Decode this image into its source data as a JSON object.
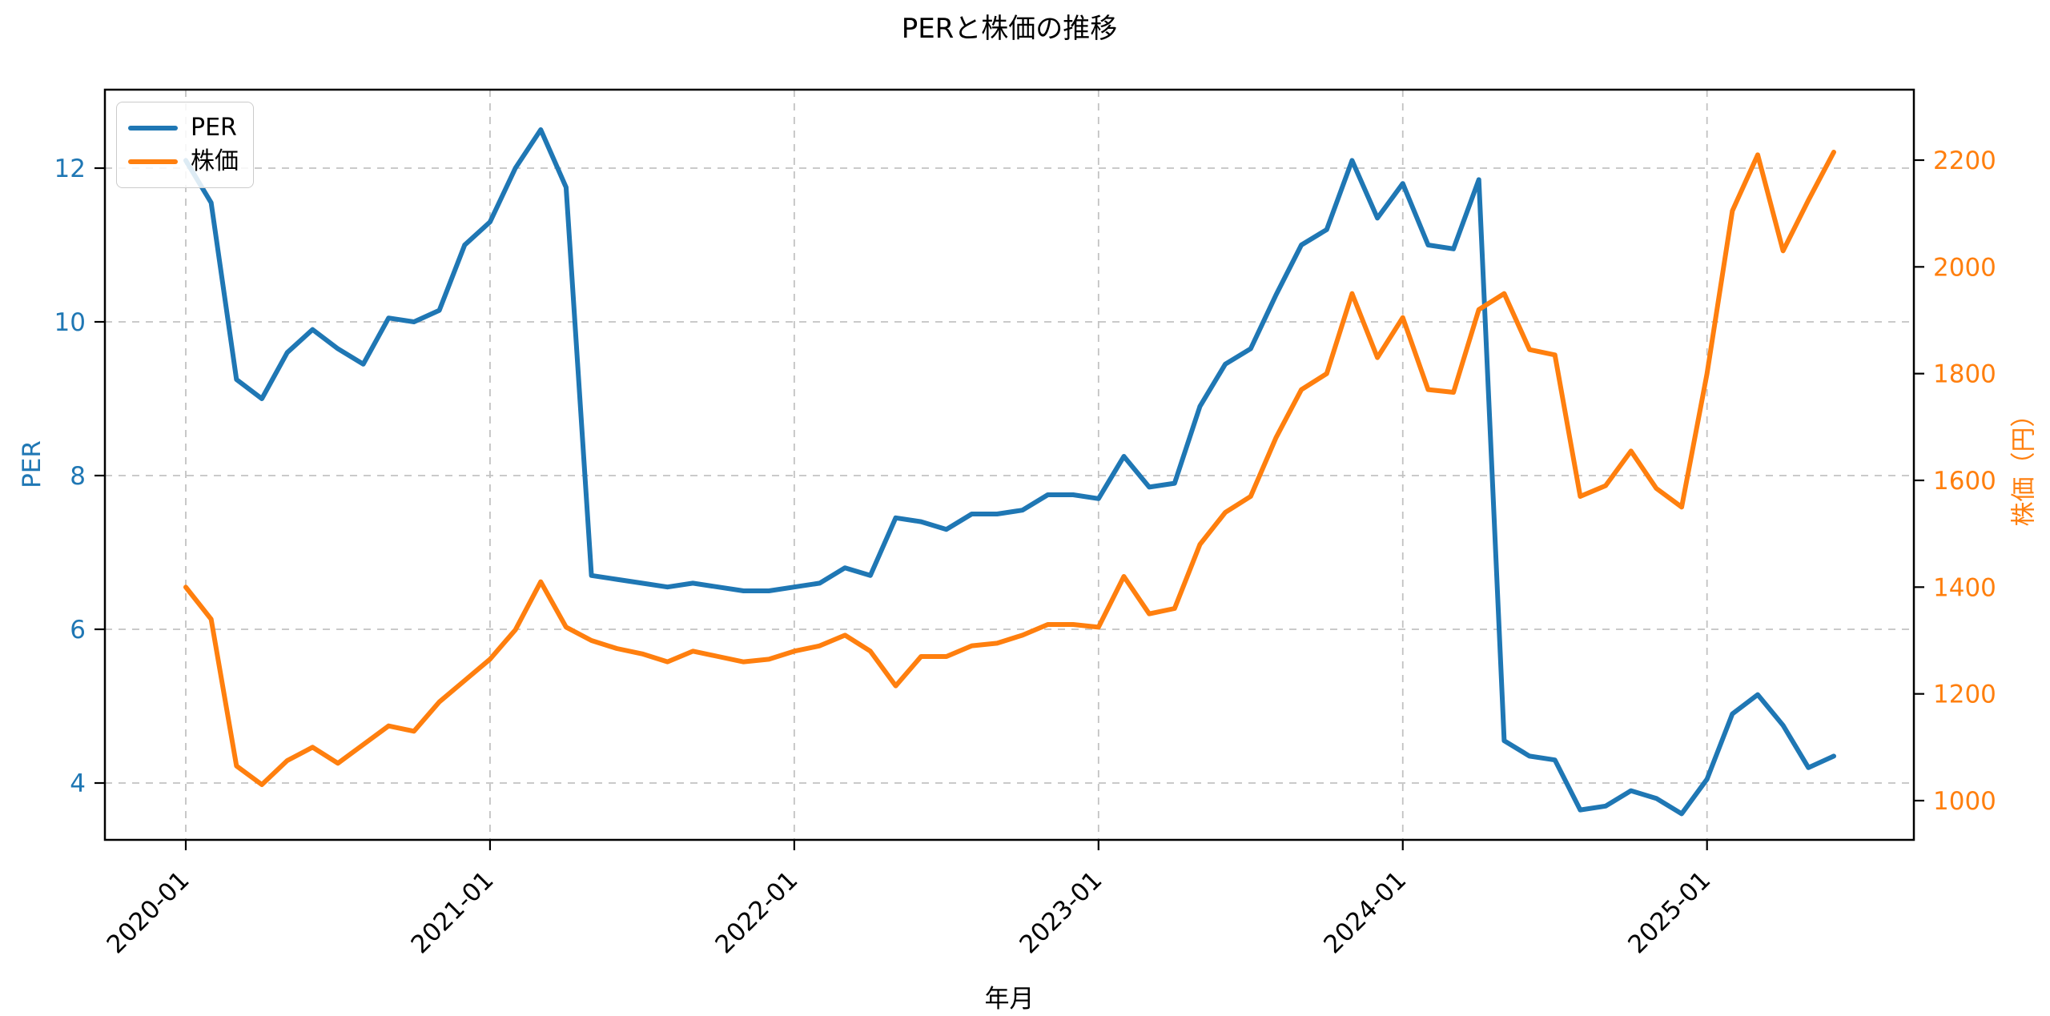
{
  "chart_data": {
    "type": "line",
    "title": "PERと株価の推移",
    "xlabel": "年月",
    "ylabel_left": "PER",
    "ylabel_right": "株価（円）",
    "x_start_month": "2020-01",
    "x_end_month": "2025-06",
    "x_points": 66,
    "x_tick_month_indices": [
      0,
      12,
      24,
      36,
      48,
      60
    ],
    "x_tick_labels": [
      "2020-01",
      "2021-01",
      "2022-01",
      "2023-01",
      "2024-01",
      "2025-01"
    ],
    "y_left_ticks": [
      4,
      6,
      8,
      10,
      12
    ],
    "y_right_ticks": [
      1000,
      1200,
      1400,
      1600,
      1800,
      2000,
      2200
    ],
    "ylim_left": [
      3.27,
      13.02
    ],
    "ylim_right": [
      927,
      2332
    ],
    "grid": "dashed, at left-axis ticks and year ticks",
    "legend_position": "upper left",
    "series": [
      {
        "name": "PER",
        "axis": "left",
        "color": "#1f77b4",
        "values": [
          12.1,
          11.55,
          9.25,
          9.0,
          9.6,
          9.9,
          9.65,
          9.45,
          10.05,
          10.0,
          10.15,
          11.0,
          11.3,
          12.0,
          12.5,
          11.75,
          6.7,
          6.65,
          6.6,
          6.55,
          6.6,
          6.55,
          6.5,
          6.5,
          6.55,
          6.6,
          6.8,
          6.7,
          7.45,
          7.4,
          7.3,
          7.5,
          7.5,
          7.55,
          7.75,
          7.75,
          7.7,
          8.25,
          7.85,
          7.9,
          8.9,
          9.45,
          9.65,
          10.35,
          11.0,
          11.2,
          12.1,
          11.35,
          11.8,
          11.0,
          10.95,
          11.85,
          4.55,
          4.35,
          4.3,
          3.65,
          3.7,
          3.9,
          3.8,
          3.6,
          4.05,
          4.9,
          5.15,
          4.75,
          4.2,
          4.35
        ]
      },
      {
        "name": "株価",
        "axis": "right",
        "color": "#ff7f0e",
        "values": [
          1400,
          1340,
          1065,
          1030,
          1075,
          1100,
          1070,
          1105,
          1140,
          1130,
          1185,
          1225,
          1265,
          1320,
          1410,
          1325,
          1300,
          1285,
          1275,
          1260,
          1280,
          1270,
          1260,
          1265,
          1280,
          1290,
          1310,
          1280,
          1215,
          1270,
          1270,
          1290,
          1295,
          1310,
          1330,
          1330,
          1325,
          1420,
          1350,
          1360,
          1480,
          1540,
          1570,
          1680,
          1770,
          1800,
          1950,
          1830,
          1905,
          1770,
          1765,
          1920,
          1950,
          1845,
          1835,
          1570,
          1590,
          1655,
          1585,
          1550,
          1800,
          2105,
          2210,
          2030,
          2125,
          2215
        ]
      }
    ],
    "legend": {
      "items": [
        {
          "label": "PER",
          "color": "#1f77b4"
        },
        {
          "label": "株価",
          "color": "#ff7f0e"
        }
      ]
    },
    "colors": {
      "per": "#1f77b4",
      "stock": "#ff7f0e",
      "grid": "#c2c2c2",
      "spine": "#000000"
    }
  }
}
